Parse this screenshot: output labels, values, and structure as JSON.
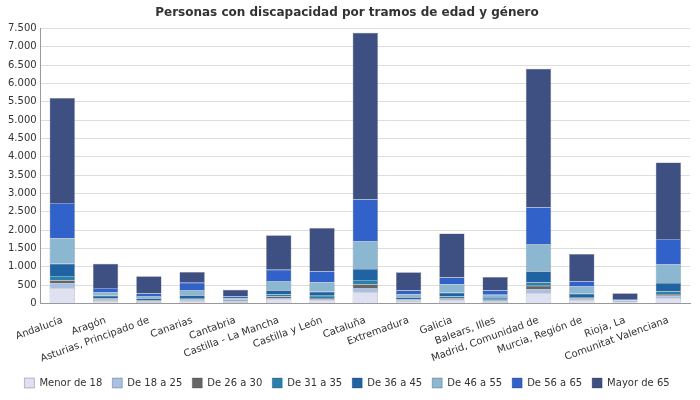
{
  "chart_data": {
    "type": "bar",
    "title": "Personas con discapacidad por tramos de edad y género",
    "stacked": true,
    "grid": true,
    "legend": "bottom",
    "categories": [
      "Andalucía",
      "Aragón",
      "Asturias, Principado de",
      "Canarias",
      "Cantabria",
      "Castilla - La Mancha",
      "Castilla y León",
      "Cataluña",
      "Extremadura",
      "Galicia",
      "Balears, Illes",
      "Madrid, Comunidad de",
      "Murcia, Región de",
      "Rioja, La",
      "Comunitat Valenciana"
    ],
    "series": [
      {
        "name": "Menor de 18",
        "color": "#dfe1f2",
        "values": [
          420,
          60,
          40,
          60,
          30,
          100,
          80,
          300,
          50,
          70,
          40,
          280,
          80,
          20,
          150
        ]
      },
      {
        "name": "De 18 a 25",
        "color": "#a9c0e2",
        "values": [
          130,
          30,
          20,
          25,
          15,
          50,
          40,
          120,
          20,
          40,
          20,
          110,
          30,
          10,
          60
        ]
      },
      {
        "name": "De 26 a 30",
        "color": "#666666",
        "values": [
          80,
          20,
          15,
          20,
          10,
          40,
          30,
          100,
          15,
          30,
          15,
          90,
          25,
          10,
          50
        ]
      },
      {
        "name": "De 31 a 35",
        "color": "#2a80ad",
        "values": [
          120,
          30,
          20,
          40,
          15,
          60,
          60,
          120,
          25,
          50,
          25,
          100,
          40,
          10,
          70
        ]
      },
      {
        "name": "De 36 a 45",
        "color": "#1f63a3",
        "values": [
          330,
          70,
          45,
          80,
          30,
          110,
          110,
          300,
          60,
          100,
          50,
          300,
          90,
          20,
          230
        ]
      },
      {
        "name": "De 46 a 55",
        "color": "#8bb7d1",
        "values": [
          700,
          90,
          60,
          140,
          40,
          250,
          260,
          750,
          80,
          230,
          90,
          740,
          200,
          20,
          500
        ]
      },
      {
        "name": "De 56 a 65",
        "color": "#3162c9",
        "values": [
          960,
          120,
          70,
          200,
          50,
          310,
          300,
          1150,
          100,
          190,
          110,
          1000,
          140,
          30,
          700
        ]
      },
      {
        "name": "Mayor de 65",
        "color": "#3e5082",
        "values": [
          2860,
          660,
          470,
          295,
          180,
          940,
          1180,
          4540,
          500,
          1200,
          370,
          3780,
          745,
          160,
          2080
        ]
      }
    ],
    "ylim": [
      0,
      7500
    ],
    "yticks": [
      0,
      500,
      {
        "value": 1000,
        "label": "1.000"
      },
      {
        "value": 1500,
        "label": "1.500"
      },
      {
        "value": 2000,
        "label": "2.000"
      },
      {
        "value": 2500,
        "label": "2.500"
      },
      {
        "value": 3000,
        "label": "3.000"
      },
      {
        "value": 3500,
        "label": "3.500"
      },
      {
        "value": 4000,
        "label": "4.000"
      },
      {
        "value": 4500,
        "label": "4.500"
      },
      {
        "value": 5000,
        "label": "5.000"
      },
      {
        "value": 5500,
        "label": "5.500"
      },
      {
        "value": 6000,
        "label": "6.000"
      },
      {
        "value": 6500,
        "label": "6.500"
      },
      {
        "value": 7000,
        "label": "7.000"
      },
      {
        "value": 7500,
        "label": "7.500"
      }
    ]
  }
}
